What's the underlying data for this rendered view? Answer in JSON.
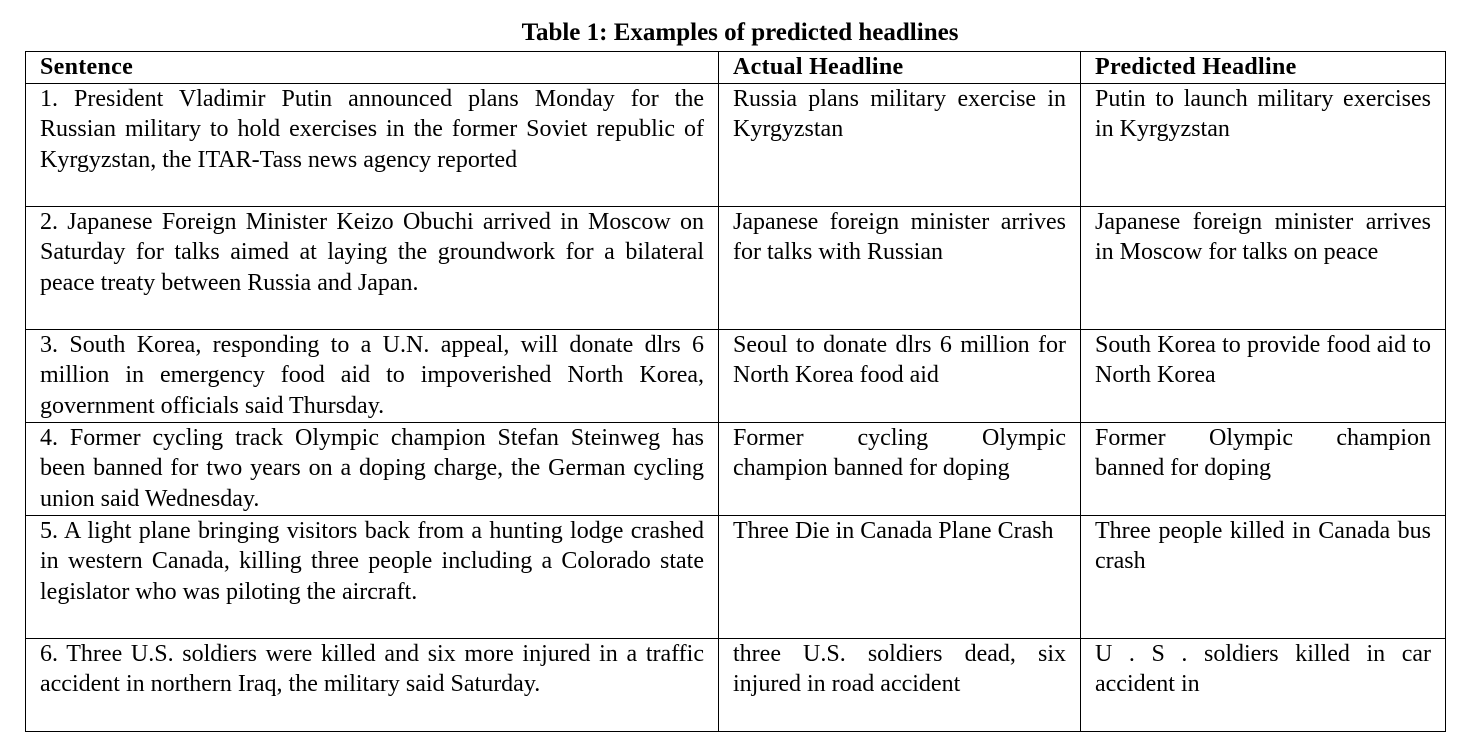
{
  "caption": "Table 1: Examples of predicted headlines",
  "table": {
    "headers": [
      "Sentence",
      "Actual Headline",
      "Predicted Headline"
    ],
    "rows": [
      {
        "sentence": "1. President Vladimir Putin announced plans Monday for the Russian military to hold exercises in the former Soviet republic of Kyrgyzstan, the ITAR-Tass news agency reported",
        "actual": "Russia plans military exercise in Kyrgyzstan",
        "predicted": "Putin to launch military exercises in Kyrgyzstan"
      },
      {
        "sentence": "2. Japanese Foreign Minister Keizo Obuchi arrived in Moscow on Saturday for talks aimed at laying the groundwork for a bilateral peace treaty between Russia and Japan.",
        "actual": "Japanese foreign minister arrives for talks with Russian",
        "predicted": "Japanese foreign minister arrives in Moscow for talks on peace"
      },
      {
        "sentence": "3. South Korea, responding to a U.N. appeal, will donate dlrs 6 million in emergency food aid to impoverished North Korea, government officials said Thursday.",
        "actual": "Seoul to donate dlrs 6 million for North Korea food aid",
        "predicted": "South Korea to provide food aid to North Korea"
      },
      {
        "sentence": "4. Former cycling track Olympic champion Stefan Steinweg has been banned for two years on a doping charge, the German cycling union said Wednesday.",
        "actual": "Former cycling Olympic champion banned for doping",
        "predicted": "Former Olympic champion banned for doping"
      },
      {
        "sentence": "5. A light plane bringing visitors back from a hunting lodge crashed in western Canada, killing three people including a Colorado state legislator who was piloting the aircraft.",
        "actual": "Three Die in Canada Plane Crash",
        "predicted": "Three people killed in Canada bus crash"
      },
      {
        "sentence": "6. Three U.S. soldiers were killed and six more injured in a traffic accident in northern Iraq, the military said Saturday.",
        "actual": "three U.S. soldiers dead, six injured in road accident",
        "predicted": "U . S . soldiers killed in car accident in"
      }
    ]
  }
}
